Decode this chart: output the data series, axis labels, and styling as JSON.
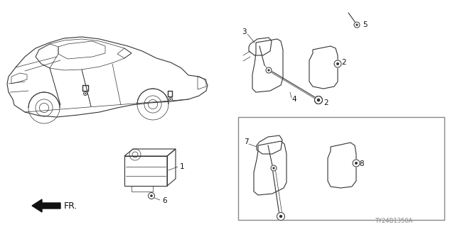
{
  "bg_color": "#ffffff",
  "part_number": "TY24B1350A",
  "figsize": [
    6.4,
    3.2
  ],
  "dpi": 100,
  "line_color": "#333333",
  "label_color": "#111111",
  "label_fontsize": 7.5
}
